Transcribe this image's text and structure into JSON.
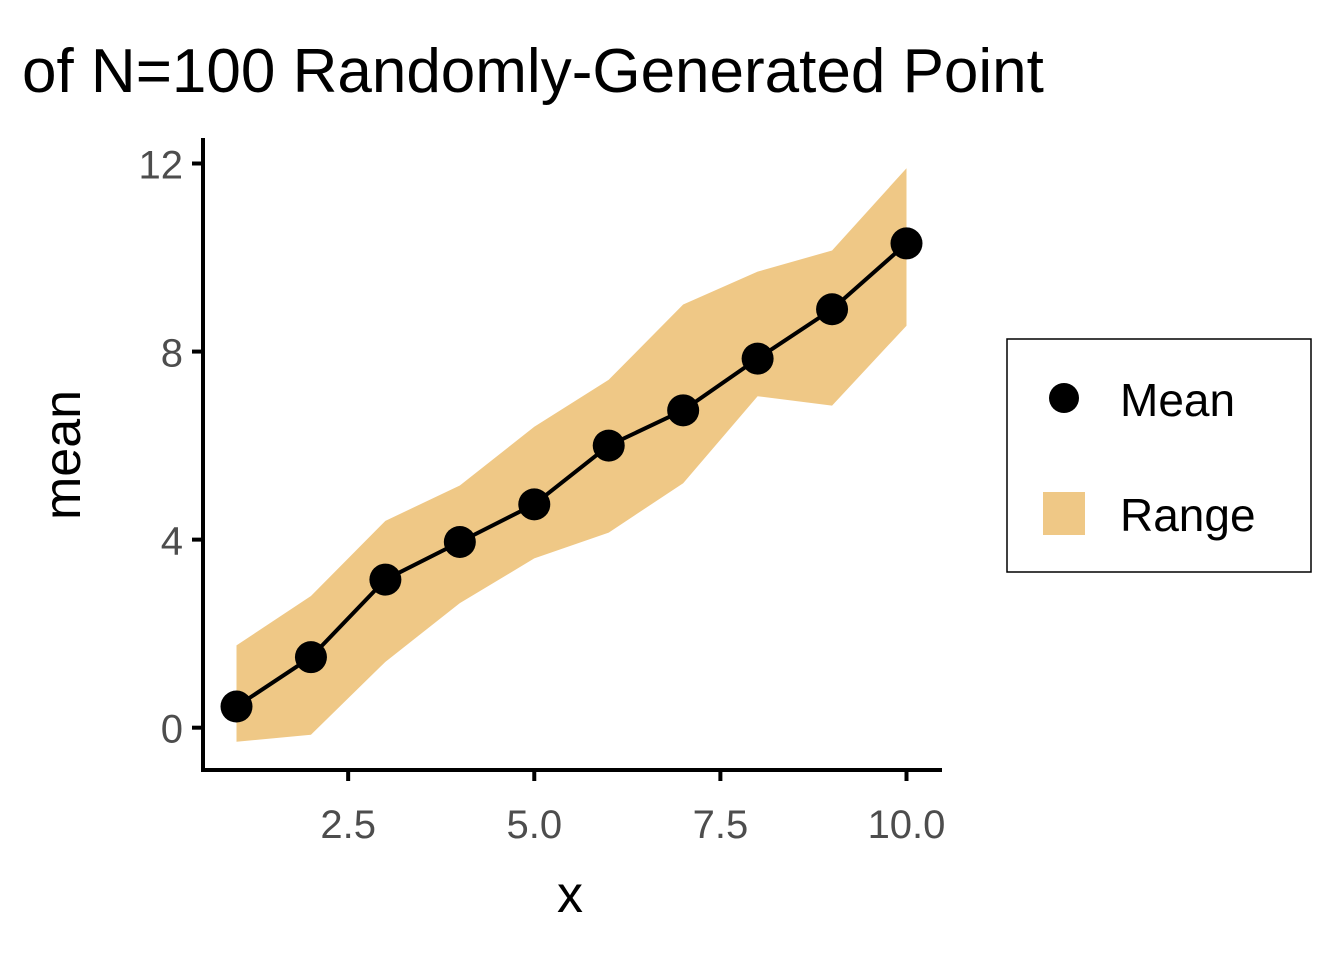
{
  "chart_data": {
    "type": "line",
    "title": "of N=100 Randomly-Generated Point",
    "xlabel": "x",
    "ylabel": "mean",
    "x": [
      1,
      2,
      3,
      4,
      5,
      6,
      7,
      8,
      9,
      10
    ],
    "series": [
      {
        "name": "Mean",
        "values": [
          0.45,
          1.5,
          3.15,
          3.95,
          4.75,
          6.0,
          6.75,
          7.85,
          8.9,
          10.3
        ]
      }
    ],
    "range": {
      "name": "Range",
      "lower": [
        -0.3,
        -0.15,
        1.4,
        2.65,
        3.6,
        4.15,
        5.2,
        7.05,
        6.85,
        8.55
      ],
      "upper": [
        1.75,
        2.8,
        4.4,
        5.15,
        6.4,
        7.4,
        9.0,
        9.7,
        10.15,
        11.9
      ]
    },
    "xticks": [
      2.5,
      5.0,
      7.5,
      10.0
    ],
    "xtick_labels": [
      "2.5",
      "5.0",
      "7.5",
      "10.0"
    ],
    "yticks": [
      0,
      4,
      8,
      12
    ],
    "ytick_labels": [
      "0",
      "4",
      "8",
      "12"
    ],
    "xlim": [
      0.55,
      10.45
    ],
    "ylim": [
      -0.9,
      12.5
    ],
    "grid": false,
    "legend_position": "right",
    "colors": {
      "line": "#000000",
      "points": "#000000",
      "ribbon": "#efc886",
      "axis": "#000000",
      "tick_text": "#4d4d4d"
    }
  },
  "legend": {
    "mean_label": "Mean",
    "range_label": "Range"
  }
}
